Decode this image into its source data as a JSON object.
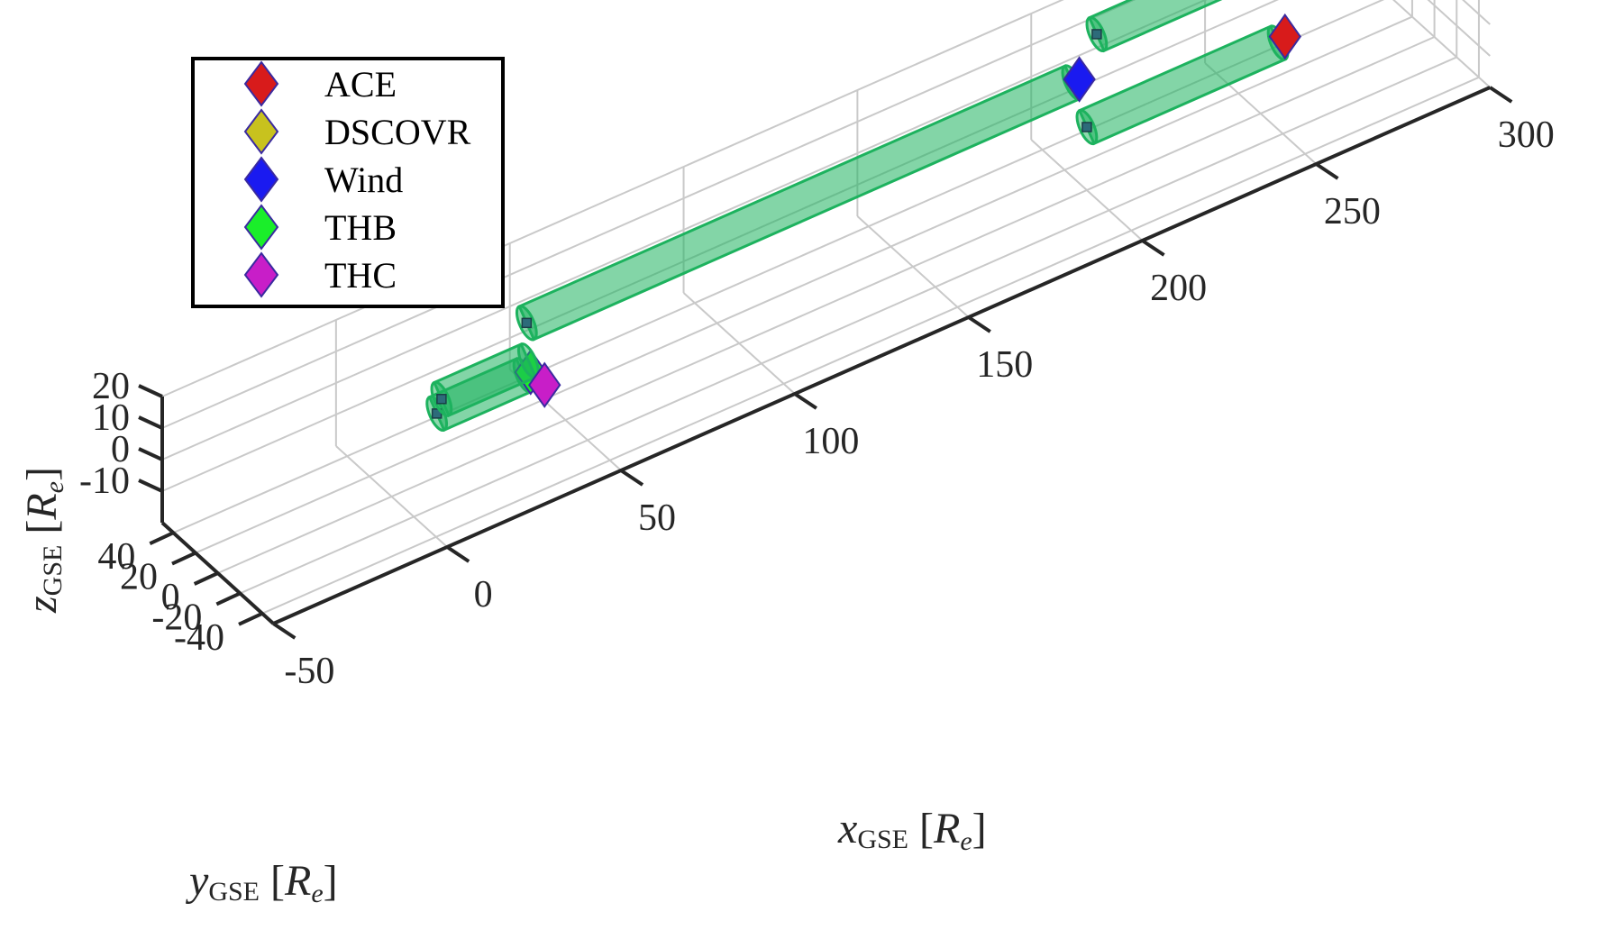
{
  "chart_data": {
    "type": "3d-line",
    "legend_position": "top-left",
    "grid": true,
    "x_axis": {
      "var": "x",
      "sub": "GSE",
      "unit": "R",
      "unit_sub": "e",
      "ticks": [
        -50,
        0,
        50,
        100,
        150,
        200,
        250,
        300
      ],
      "tick_labels": [
        "-50",
        "0",
        "50",
        "100",
        "150",
        "200",
        "250",
        "300"
      ],
      "range": [
        -50,
        300
      ]
    },
    "y_axis": {
      "var": "y",
      "sub": "GSE",
      "unit": "R",
      "unit_sub": "e",
      "ticks": [
        -40,
        -20,
        0,
        20,
        40
      ],
      "tick_labels": [
        "-40",
        "-20",
        "0",
        "20",
        "40"
      ],
      "range": [
        -50,
        50
      ]
    },
    "z_axis": {
      "var": "z",
      "sub": "GSE",
      "unit": "R",
      "unit_sub": "e",
      "ticks": [
        -10,
        0,
        10,
        20
      ],
      "tick_labels": [
        "-10",
        "0",
        "10",
        "20"
      ],
      "range": [
        -20,
        20
      ]
    },
    "series": [
      {
        "name": "ACE",
        "color": "#d81b1b",
        "tube": {
          "start": [
            200,
            0,
            0
          ],
          "end": [
            255,
            0,
            0
          ]
        },
        "marker": [
          257,
          0,
          1
        ],
        "dot": [
          200,
          0,
          0
        ]
      },
      {
        "name": "DSCOVR",
        "color": "#c8c21e",
        "tube": {
          "start": [
            215,
            38,
            10
          ],
          "end": [
            260,
            38,
            10
          ]
        },
        "marker": [
          262,
          38,
          11
        ],
        "dot": [
          215,
          38,
          10
        ]
      },
      {
        "name": "Wind",
        "color": "#1a1af0",
        "tube": {
          "start": [
            43,
            13,
            10
          ],
          "end": [
            200,
            13,
            10
          ]
        },
        "marker": [
          202,
          13,
          10
        ],
        "dot": [
          43,
          13,
          10
        ]
      },
      {
        "name": "THB",
        "color": "#1aee2a",
        "tube": {
          "start": [
            13,
            0,
            0
          ],
          "end": [
            38,
            0,
            0
          ]
        },
        "marker": [
          40,
          0,
          0
        ],
        "dot": [
          13,
          0,
          0
        ]
      },
      {
        "name": "THC",
        "color": "#c81ec8",
        "tube": {
          "start": [
            15,
            2,
            3
          ],
          "end": [
            40,
            2,
            3
          ]
        },
        "marker": [
          44,
          0,
          -6
        ],
        "dot": [
          15,
          2,
          3
        ]
      }
    ],
    "tube_color": "#1db25e"
  }
}
